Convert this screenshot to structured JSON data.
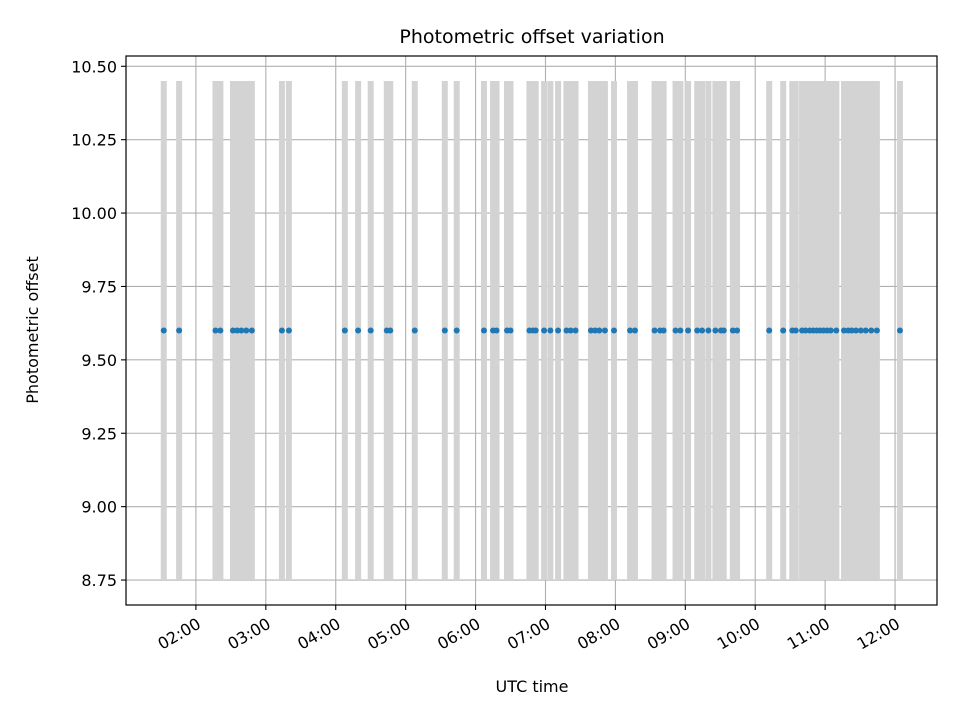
{
  "chart_data": {
    "type": "scatter",
    "title": "Photometric offset variation",
    "xlabel": "UTC time",
    "ylabel": "Photometric offset",
    "x_unit": "hours UTC",
    "xlim": [
      1.0,
      12.6
    ],
    "ylim": [
      8.665,
      10.535
    ],
    "grid": true,
    "yticks": [
      {
        "value": 8.75,
        "label": "8.75"
      },
      {
        "value": 9.0,
        "label": "9.00"
      },
      {
        "value": 9.25,
        "label": "9.25"
      },
      {
        "value": 9.5,
        "label": "9.50"
      },
      {
        "value": 9.75,
        "label": "9.75"
      },
      {
        "value": 10.0,
        "label": "10.00"
      },
      {
        "value": 10.25,
        "label": "10.25"
      },
      {
        "value": 10.5,
        "label": "10.50"
      }
    ],
    "xticks": [
      {
        "value": 2,
        "label": "02:00"
      },
      {
        "value": 3,
        "label": "03:00"
      },
      {
        "value": 4,
        "label": "04:00"
      },
      {
        "value": 5,
        "label": "05:00"
      },
      {
        "value": 6,
        "label": "06:00"
      },
      {
        "value": 7,
        "label": "07:00"
      },
      {
        "value": 8,
        "label": "08:00"
      },
      {
        "value": 9,
        "label": "09:00"
      },
      {
        "value": 10,
        "label": "10:00"
      },
      {
        "value": 11,
        "label": "11:00"
      },
      {
        "value": 12,
        "label": "12:00"
      }
    ],
    "errorbar_range": [
      8.75,
      10.45
    ],
    "series": [
      {
        "name": "Photometric offset",
        "marker_color": "#1f77b4",
        "errorbar_color": "#d3d3d3",
        "x": [
          1.54,
          1.76,
          2.28,
          2.35,
          2.53,
          2.59,
          2.65,
          2.72,
          2.8,
          3.23,
          3.33,
          4.13,
          4.32,
          4.5,
          4.73,
          4.78,
          5.13,
          5.56,
          5.73,
          6.12,
          6.25,
          6.3,
          6.45,
          6.5,
          6.77,
          6.82,
          6.86,
          6.98,
          7.07,
          7.18,
          7.3,
          7.36,
          7.43,
          7.65,
          7.71,
          7.77,
          7.85,
          7.98,
          8.21,
          8.28,
          8.56,
          8.64,
          8.69,
          8.86,
          8.93,
          9.04,
          9.17,
          9.24,
          9.33,
          9.43,
          9.51,
          9.55,
          9.68,
          9.74,
          10.2,
          10.4,
          10.53,
          10.58,
          10.67,
          10.72,
          10.78,
          10.83,
          10.88,
          10.93,
          10.98,
          11.03,
          11.08,
          11.16,
          11.27,
          11.33,
          11.38,
          11.44,
          11.51,
          11.58,
          11.66,
          11.74,
          12.07
        ],
        "y": [
          9.6,
          9.6,
          9.6,
          9.6,
          9.6,
          9.6,
          9.6,
          9.6,
          9.6,
          9.6,
          9.6,
          9.6,
          9.6,
          9.6,
          9.6,
          9.6,
          9.6,
          9.6,
          9.6,
          9.6,
          9.6,
          9.6,
          9.6,
          9.6,
          9.6,
          9.6,
          9.6,
          9.6,
          9.6,
          9.6,
          9.6,
          9.6,
          9.6,
          9.6,
          9.6,
          9.6,
          9.6,
          9.6,
          9.6,
          9.6,
          9.6,
          9.6,
          9.6,
          9.6,
          9.6,
          9.6,
          9.6,
          9.6,
          9.6,
          9.6,
          9.6,
          9.6,
          9.6,
          9.6,
          9.6,
          9.6,
          9.6,
          9.6,
          9.6,
          9.6,
          9.6,
          9.6,
          9.6,
          9.6,
          9.6,
          9.6,
          9.6,
          9.6,
          9.6,
          9.6,
          9.6,
          9.6,
          9.6,
          9.6,
          9.6,
          9.6,
          9.6
        ]
      }
    ]
  }
}
